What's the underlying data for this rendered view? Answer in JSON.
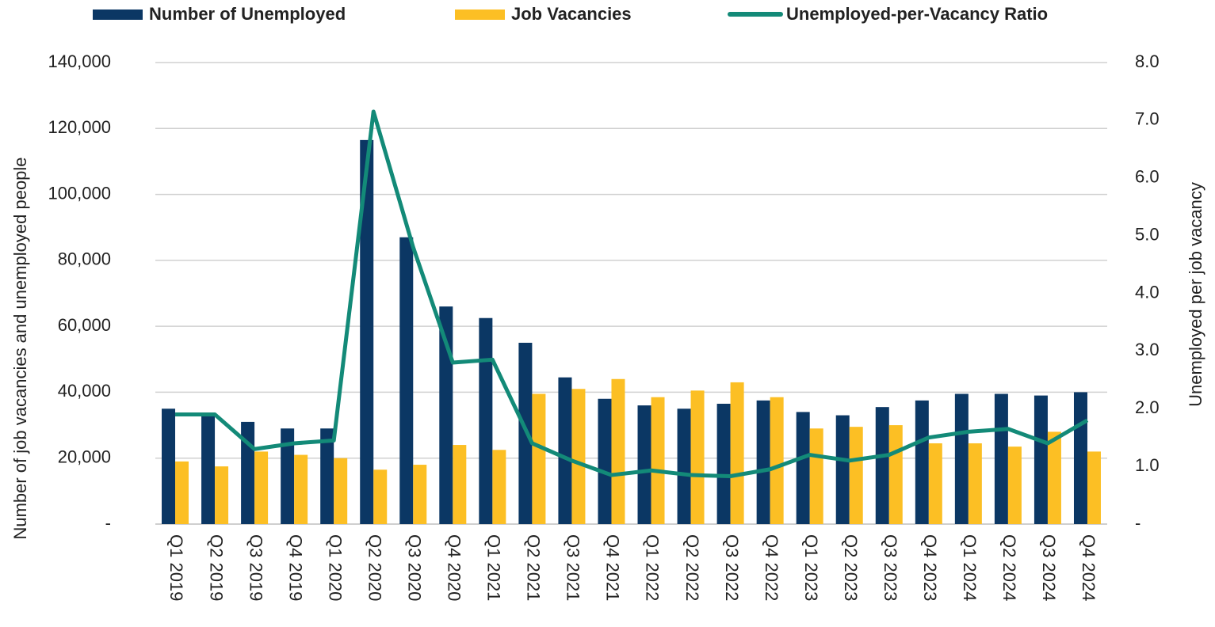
{
  "chart_data": {
    "type": "bar",
    "categories": [
      "Q1 2019",
      "Q2 2019",
      "Q3 2019",
      "Q4 2019",
      "Q1 2020",
      "Q2 2020",
      "Q3 2020",
      "Q4 2020",
      "Q1 2021",
      "Q2 2021",
      "Q3 2021",
      "Q4 2021",
      "Q1 2022",
      "Q2 2022",
      "Q3 2022",
      "Q4 2022",
      "Q1 2023",
      "Q2 2023",
      "Q3 2023",
      "Q4 2023",
      "Q1 2024",
      "Q2 2024",
      "Q3 2024",
      "Q4 2024"
    ],
    "series": [
      {
        "name": "Number of Unemployed",
        "type": "bar",
        "color": "#0b3764",
        "values": [
          35000,
          33000,
          31000,
          29000,
          29000,
          116500,
          87000,
          66000,
          62500,
          55000,
          44500,
          38000,
          36000,
          35000,
          36500,
          37500,
          34000,
          33000,
          35500,
          37500,
          39500,
          39500,
          39000,
          40000
        ]
      },
      {
        "name": "Job Vacancies",
        "type": "bar",
        "color": "#fcbf24",
        "values": [
          19000,
          17500,
          22000,
          21000,
          20000,
          16500,
          18000,
          24000,
          22500,
          39500,
          41000,
          44000,
          38500,
          40500,
          43000,
          38500,
          29000,
          29500,
          30000,
          24500,
          24500,
          23500,
          28000,
          22000
        ]
      },
      {
        "name": "Unemployed-per-Vacancy Ratio",
        "type": "line",
        "axis": "y2",
        "color": "#138a78",
        "values": [
          1.9,
          1.9,
          1.3,
          1.4,
          1.45,
          7.15,
          4.8,
          2.8,
          2.85,
          1.4,
          1.1,
          0.85,
          0.93,
          0.85,
          0.83,
          0.95,
          1.2,
          1.1,
          1.2,
          1.5,
          1.6,
          1.65,
          1.4,
          1.8
        ]
      }
    ],
    "ylabel": "Number of job vacancies and unemployed people",
    "y2label": "Unemployed per job vacancy",
    "ylim": [
      0,
      140000
    ],
    "yticks": [
      {
        "value": 0,
        "label": "-"
      },
      {
        "value": 20000,
        "label": "20,000"
      },
      {
        "value": 40000,
        "label": "40,000"
      },
      {
        "value": 60000,
        "label": "60,000"
      },
      {
        "value": 80000,
        "label": "80,000"
      },
      {
        "value": 100000,
        "label": "100,000"
      },
      {
        "value": 120000,
        "label": "120,000"
      },
      {
        "value": 140000,
        "label": "140,000"
      }
    ],
    "y2lim": [
      0,
      8
    ],
    "y2ticks": [
      {
        "value": 0,
        "label": "-"
      },
      {
        "value": 1,
        "label": "1.0"
      },
      {
        "value": 2,
        "label": "2.0"
      },
      {
        "value": 3,
        "label": "3.0"
      },
      {
        "value": 4,
        "label": "4.0"
      },
      {
        "value": 5,
        "label": "5.0"
      },
      {
        "value": 6,
        "label": "6.0"
      },
      {
        "value": 7,
        "label": "7.0"
      },
      {
        "value": 8,
        "label": "8.0"
      }
    ],
    "grid": true,
    "legend": "top"
  }
}
